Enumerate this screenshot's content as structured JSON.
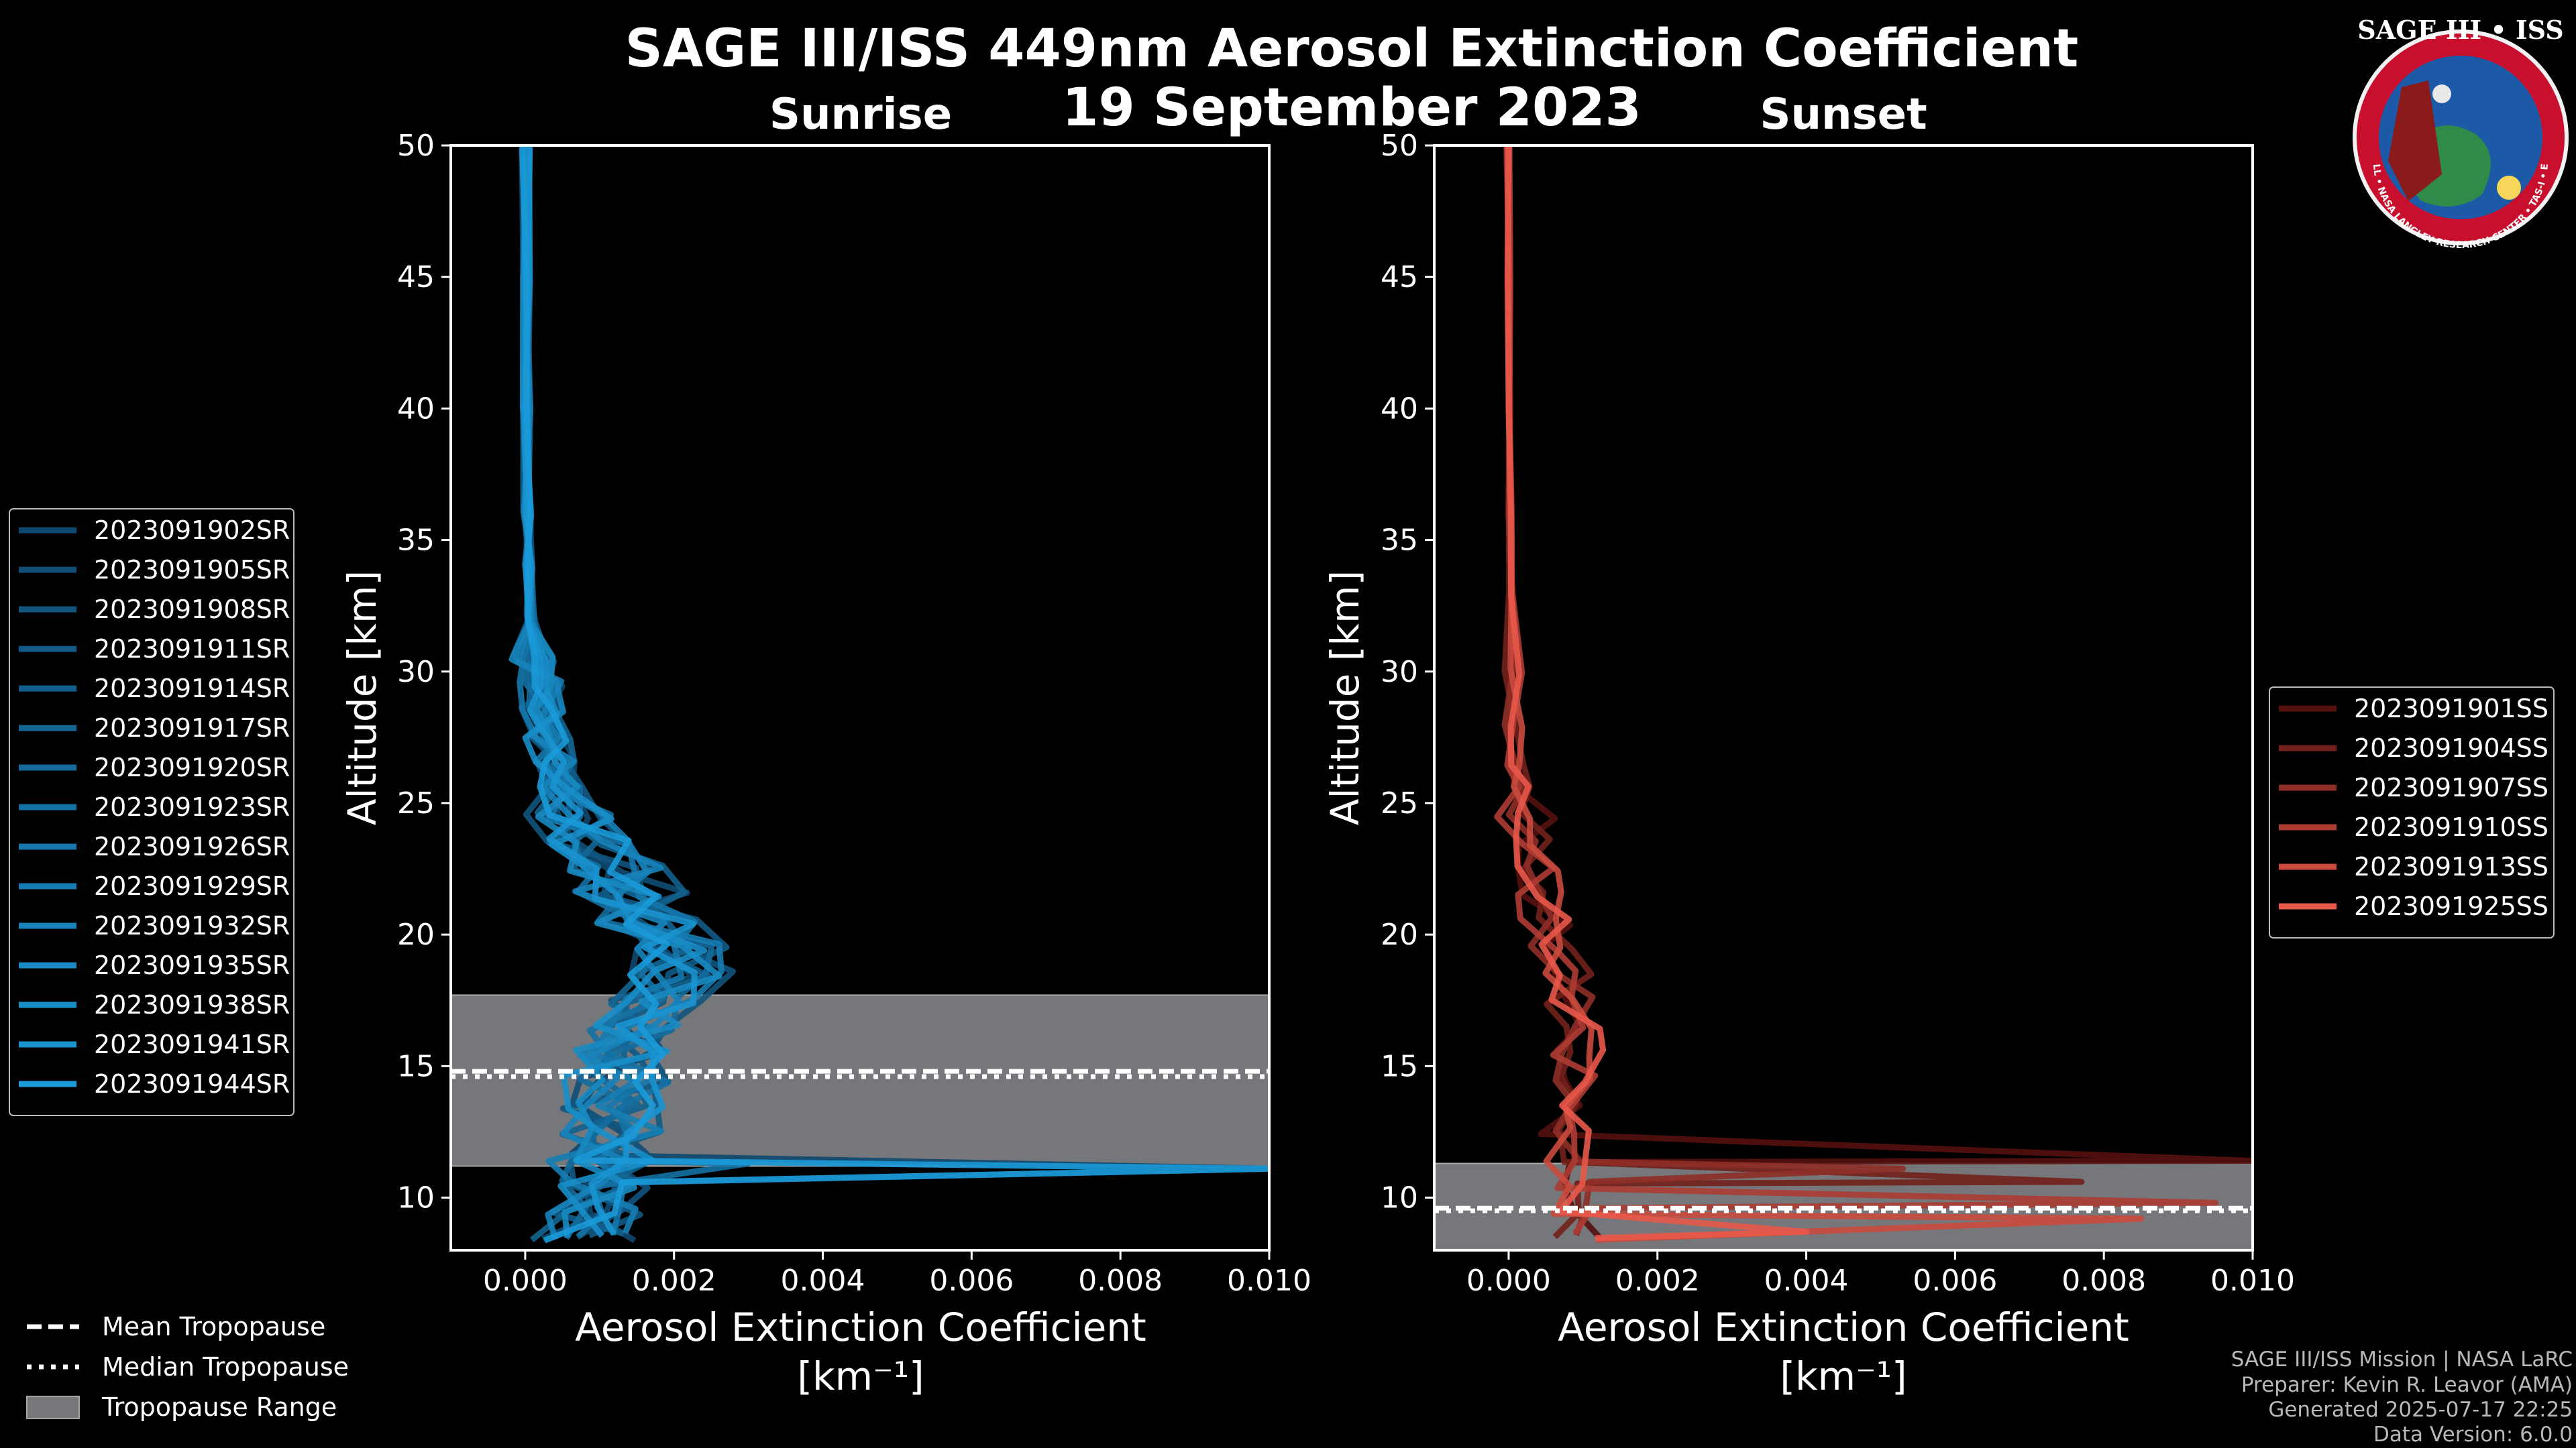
{
  "title": "SAGE III/ISS 449nm Aerosol Extinction Coefficient",
  "date": "19 September 2023",
  "logo": {
    "text": "SAGE III • ISS",
    "ring_text": "BALL • NASA LANGLEY RESEARCH CENTER • TAS-I • ESA",
    "colors": {
      "ring": "#c8102e",
      "inner": "#1c5aa8"
    }
  },
  "credits": [
    "SAGE III/ISS Mission | NASA LaRC",
    "Preparer: Kevin R. Leavor (AMA)",
    "Generated 2025-07-17 22:25",
    "Data Version: 6.0.0"
  ],
  "shared_legend": {
    "mean": "Mean Tropopause",
    "median": "Median Tropopause",
    "range": "Tropopause Range"
  },
  "chart_data": [
    {
      "type": "line",
      "title": "Sunrise",
      "xlabel": "Aerosol Extinction Coefficient",
      "xunit": "[km⁻¹]",
      "ylabel": "Altitude [km]",
      "xlim": [
        -0.001,
        0.01
      ],
      "ylim": [
        8,
        50
      ],
      "xticks": [
        "0.000",
        "0.002",
        "0.004",
        "0.006",
        "0.008",
        "0.010"
      ],
      "xtick_values": [
        0,
        0.002,
        0.004,
        0.006,
        0.008,
        0.01
      ],
      "yticks": [
        "10",
        "15",
        "20",
        "25",
        "30",
        "35",
        "40",
        "45",
        "50"
      ],
      "ytick_values": [
        10,
        15,
        20,
        25,
        30,
        35,
        40,
        45,
        50
      ],
      "tropopause": {
        "range": [
          11.2,
          17.7
        ],
        "mean": 14.8,
        "median": 14.6
      },
      "color_dark": "#0d3a5c",
      "color_light": "#1a9ad8",
      "series_names": [
        "2023091902SR",
        "2023091905SR",
        "2023091908SR",
        "2023091911SR",
        "2023091914SR",
        "2023091917SR",
        "2023091920SR",
        "2023091923SR",
        "2023091926SR",
        "2023091929SR",
        "2023091932SR",
        "2023091935SR",
        "2023091938SR",
        "2023091941SR",
        "2023091944SR"
      ],
      "base_profile": {
        "alt": [
          8.5,
          9.5,
          10.5,
          11.5,
          12.5,
          13.5,
          14.5,
          15.5,
          16.5,
          17.5,
          18.5,
          19.5,
          20.5,
          21.5,
          22.5,
          23.5,
          24.5,
          25.5,
          26.5,
          27.5,
          28.5,
          29.5,
          30.5,
          32,
          34,
          36,
          40,
          45,
          50
        ],
        "ext": [
          0.0008,
          0.0009,
          0.001,
          0.0011,
          0.0012,
          0.0012,
          0.0013,
          0.0013,
          0.0015,
          0.0018,
          0.0021,
          0.002,
          0.0017,
          0.0014,
          0.0012,
          0.0009,
          0.0007,
          0.0005,
          0.0004,
          0.0003,
          0.00025,
          0.0002,
          0.00012,
          8e-05,
          5e-05,
          3e-05,
          2e-05,
          1e-05,
          1e-05
        ]
      },
      "spikes": [
        {
          "alt": 11.1,
          "ext": 0.01
        },
        {
          "alt": 11.3,
          "ext": 0.003
        }
      ],
      "jitter": 0.0007
    },
    {
      "type": "line",
      "title": "Sunset",
      "xlabel": "Aerosol Extinction Coefficient",
      "xunit": "[km⁻¹]",
      "ylabel": "Altitude [km]",
      "xlim": [
        -0.001,
        0.01
      ],
      "ylim": [
        8,
        50
      ],
      "xticks": [
        "0.000",
        "0.002",
        "0.004",
        "0.006",
        "0.008",
        "0.010"
      ],
      "xtick_values": [
        0,
        0.002,
        0.004,
        0.006,
        0.008,
        0.01
      ],
      "yticks": [
        "10",
        "15",
        "20",
        "25",
        "30",
        "35",
        "40",
        "45",
        "50"
      ],
      "ytick_values": [
        10,
        15,
        20,
        25,
        30,
        35,
        40,
        45,
        50
      ],
      "tropopause": {
        "range": [
          8.0,
          11.3
        ],
        "mean": 9.6,
        "median": 9.5
      },
      "color_dark": "#3a0505",
      "color_light": "#e8584a",
      "series_names": [
        "2023091901SS",
        "2023091904SS",
        "2023091907SS",
        "2023091910SS",
        "2023091913SS",
        "2023091925SS"
      ],
      "base_profile": {
        "alt": [
          8.5,
          9.5,
          10.5,
          11.5,
          12.5,
          13.5,
          14.5,
          15.5,
          16.5,
          17.5,
          18.5,
          19.5,
          20.5,
          21.5,
          22.5,
          23.5,
          24.5,
          25.5,
          26.5,
          28,
          30,
          33,
          36,
          40,
          45,
          50
        ],
        "ext": [
          0.001,
          0.0009,
          0.0008,
          0.0008,
          0.0008,
          0.0009,
          0.0009,
          0.0009,
          0.0009,
          0.0008,
          0.0007,
          0.0006,
          0.0005,
          0.00042,
          0.00033,
          0.00025,
          0.0002,
          0.00015,
          0.0001,
          7e-05,
          5e-05,
          3e-05,
          2e-05,
          1e-05,
          0.0,
          -1e-05
        ]
      },
      "spikes": [
        {
          "alt": 11.4,
          "ext": 0.01
        },
        {
          "alt": 10.6,
          "ext": 0.0077
        },
        {
          "alt": 11.1,
          "ext": 0.0053
        },
        {
          "alt": 9.8,
          "ext": 0.0095
        },
        {
          "alt": 9.2,
          "ext": 0.0085
        },
        {
          "alt": 8.7,
          "ext": 0.004
        }
      ],
      "jitter": 0.0003
    }
  ]
}
